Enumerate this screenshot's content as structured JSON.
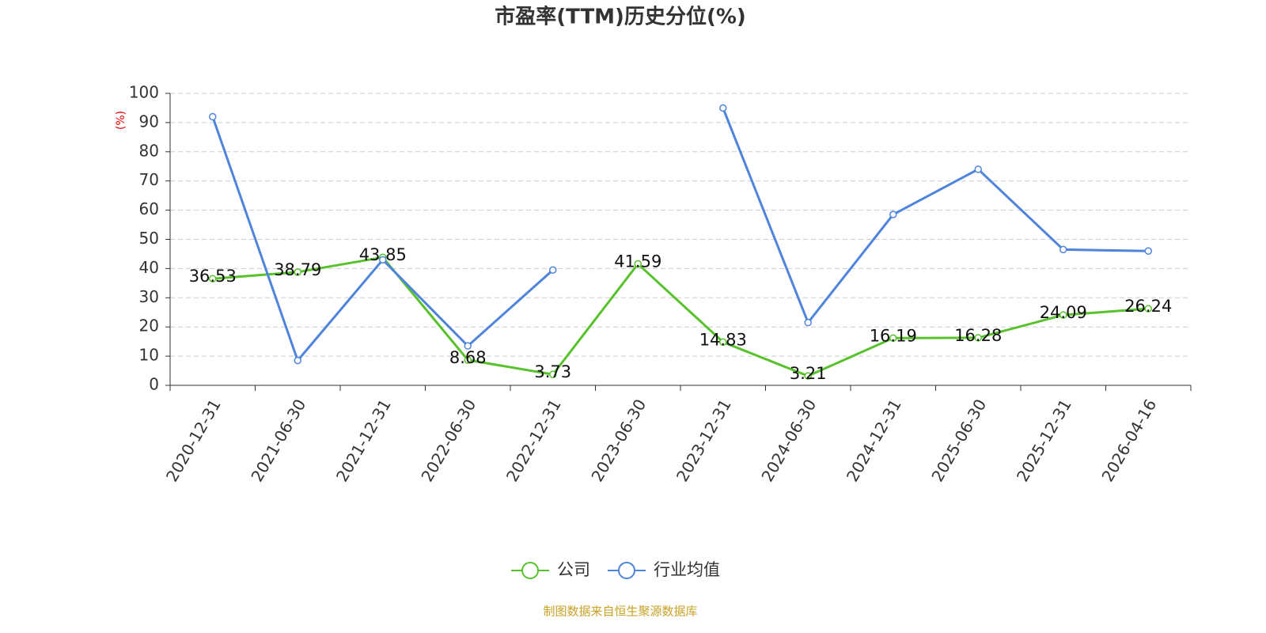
{
  "chart_data": {
    "type": "line",
    "title": "市盈率(TTM)历史分位(%)",
    "y_label": "(%)",
    "source": "制图数据来自恒生聚源数据库",
    "categories": [
      "2020-12-31",
      "2021-06-30",
      "2021-12-31",
      "2022-06-30",
      "2022-12-31",
      "2023-06-30",
      "2023-12-31",
      "2024-06-30",
      "2024-12-31",
      "2025-06-30",
      "2025-12-31",
      "2026-04-16"
    ],
    "series": [
      {
        "name": "公司",
        "color": "#58c22c",
        "show_labels": true,
        "values": [
          36.53,
          38.79,
          43.85,
          8.68,
          3.73,
          41.59,
          14.83,
          3.21,
          16.19,
          16.28,
          24.09,
          26.24
        ]
      },
      {
        "name": "行业均值",
        "color": "#4f84dc",
        "show_labels": false,
        "values": [
          92,
          8.5,
          43,
          13.5,
          39.5,
          null,
          95,
          21.5,
          58.5,
          74,
          46.5,
          46
        ]
      }
    ],
    "ylim": [
      0,
      100
    ],
    "yticks": [
      0,
      10,
      20,
      30,
      40,
      50,
      60,
      70,
      80,
      90,
      100
    ],
    "grid": true
  }
}
